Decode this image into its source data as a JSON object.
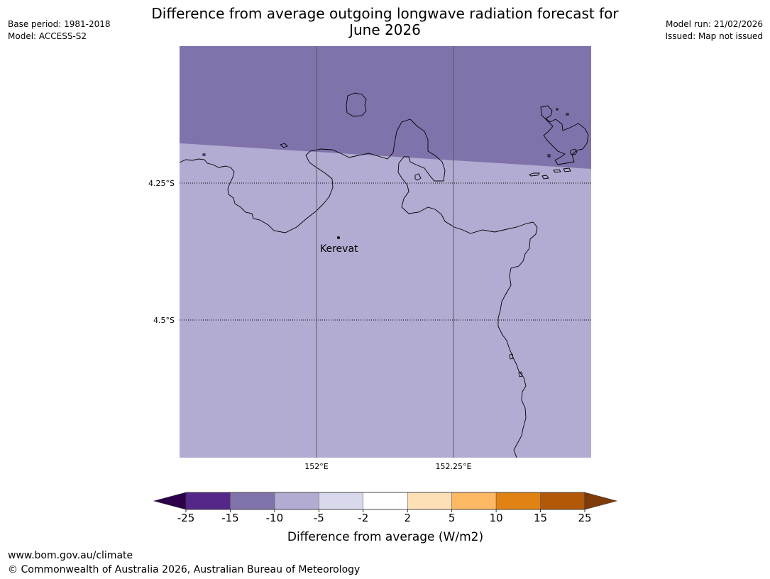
{
  "title": {
    "line1": "Difference from average outgoing longwave radiation forecast for",
    "line2": "June 2026"
  },
  "meta_left": {
    "base_period": "Base period: 1981-2018",
    "model": "Model: ACCESS-S2"
  },
  "meta_right": {
    "model_run": "Model run: 21/02/2026",
    "issued": "Issued: Map not issued"
  },
  "map": {
    "lat_labels": [
      "4.25°S",
      "4.5°S"
    ],
    "lon_labels": [
      "152°E",
      "152.25°E"
    ],
    "place": "Kerevat",
    "region_colors": {
      "north": "#8073ac",
      "south": "#b2abd2",
      "background": "#ffffff",
      "coastline": "#000000"
    }
  },
  "legend": {
    "ticks": [
      "-25",
      "-15",
      "-10",
      "-5",
      "-2",
      "2",
      "5",
      "10",
      "15",
      "25"
    ],
    "colors": [
      "#542788",
      "#8073ac",
      "#b2abd2",
      "#d8daeb",
      "#ffffff",
      "#fee0b6",
      "#fdb863",
      "#e08214",
      "#b35806"
    ],
    "under_color": "#2d004b",
    "over_color": "#7f3b08",
    "label": "Difference from average (W/m2)"
  },
  "footer": {
    "url": "www.bom.gov.au/climate",
    "copyright": "© Commonwealth of Australia 2026, Australian Bureau of Meteorology"
  }
}
